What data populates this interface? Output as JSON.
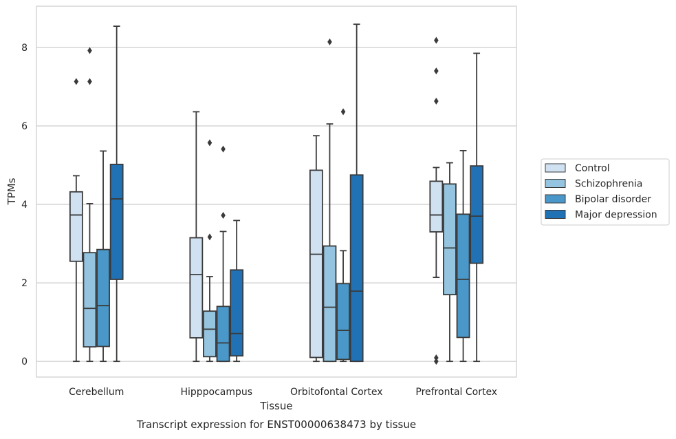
{
  "caption": "Transcript expression for ENST00000638473 by tissue",
  "colors": {
    "Control": "#d0e1f2",
    "Schizophrenia": "#94c4df",
    "Bipolar disorder": "#4a98c9",
    "Major depression": "#2171b5",
    "edge": "#3a3a3a",
    "grid": "#cccccc",
    "frame": "#cccccc"
  },
  "chart_data": {
    "type": "box",
    "xlabel": "Tissue",
    "ylabel": "TPMs",
    "ylim": [
      -0.4,
      9.05
    ],
    "yticks": [
      0,
      2,
      4,
      6,
      8
    ],
    "grid": "horizontal",
    "legend_position": "right",
    "categories": [
      "Cerebellum",
      "Hipppocampus",
      "Orbitofontal Cortex",
      "Prefrontal Cortex"
    ],
    "series": [
      {
        "name": "Control",
        "boxes": [
          {
            "whislo": 0,
            "q1": 2.55,
            "med": 3.73,
            "q3": 4.32,
            "whishi": 4.73,
            "fliers": [
              7.13
            ]
          },
          {
            "whislo": 0,
            "q1": 0.6,
            "med": 2.21,
            "q3": 3.15,
            "whishi": 6.36,
            "fliers": []
          },
          {
            "whislo": 0,
            "q1": 0.1,
            "med": 2.73,
            "q3": 4.87,
            "whishi": 5.75,
            "fliers": []
          },
          {
            "whislo": 2.14,
            "q1": 3.3,
            "med": 3.73,
            "q3": 4.59,
            "whishi": 4.94,
            "fliers": [
              0,
              0.09,
              6.63,
              7.4,
              8.18
            ]
          }
        ]
      },
      {
        "name": "Schizophrenia",
        "boxes": [
          {
            "whislo": 0,
            "q1": 0.37,
            "med": 1.35,
            "q3": 2.77,
            "whishi": 4.02,
            "fliers": [
              7.13,
              7.92
            ]
          },
          {
            "whislo": 0,
            "q1": 0.12,
            "med": 0.82,
            "q3": 1.28,
            "whishi": 2.16,
            "fliers": [
              3.17,
              5.57
            ]
          },
          {
            "whislo": 0,
            "q1": 0,
            "med": 1.38,
            "q3": 2.94,
            "whishi": 6.05,
            "fliers": [
              8.14
            ]
          },
          {
            "whislo": 0,
            "q1": 1.7,
            "med": 2.89,
            "q3": 4.52,
            "whishi": 5.06,
            "fliers": []
          }
        ]
      },
      {
        "name": "Bipolar disorder",
        "boxes": [
          {
            "whislo": 0,
            "q1": 0.38,
            "med": 1.42,
            "q3": 2.85,
            "whishi": 5.36,
            "fliers": []
          },
          {
            "whislo": 0,
            "q1": 0,
            "med": 0.47,
            "q3": 1.4,
            "whishi": 3.31,
            "fliers": [
              3.72,
              5.41
            ]
          },
          {
            "whislo": 0,
            "q1": 0.05,
            "med": 0.79,
            "q3": 1.98,
            "whishi": 2.82,
            "fliers": [
              6.36
            ]
          },
          {
            "whislo": 0,
            "q1": 0.61,
            "med": 2.09,
            "q3": 3.75,
            "whishi": 5.37,
            "fliers": []
          }
        ]
      },
      {
        "name": "Major depression",
        "boxes": [
          {
            "whislo": 0,
            "q1": 2.09,
            "med": 4.14,
            "q3": 5.02,
            "whishi": 8.54,
            "fliers": []
          },
          {
            "whislo": 0,
            "q1": 0.14,
            "med": 0.71,
            "q3": 2.33,
            "whishi": 3.59,
            "fliers": []
          },
          {
            "whislo": 0,
            "q1": 0,
            "med": 1.79,
            "q3": 4.75,
            "whishi": 8.59,
            "fliers": []
          },
          {
            "whislo": 0,
            "q1": 2.5,
            "med": 3.7,
            "q3": 4.98,
            "whishi": 7.85,
            "fliers": []
          }
        ]
      }
    ]
  }
}
